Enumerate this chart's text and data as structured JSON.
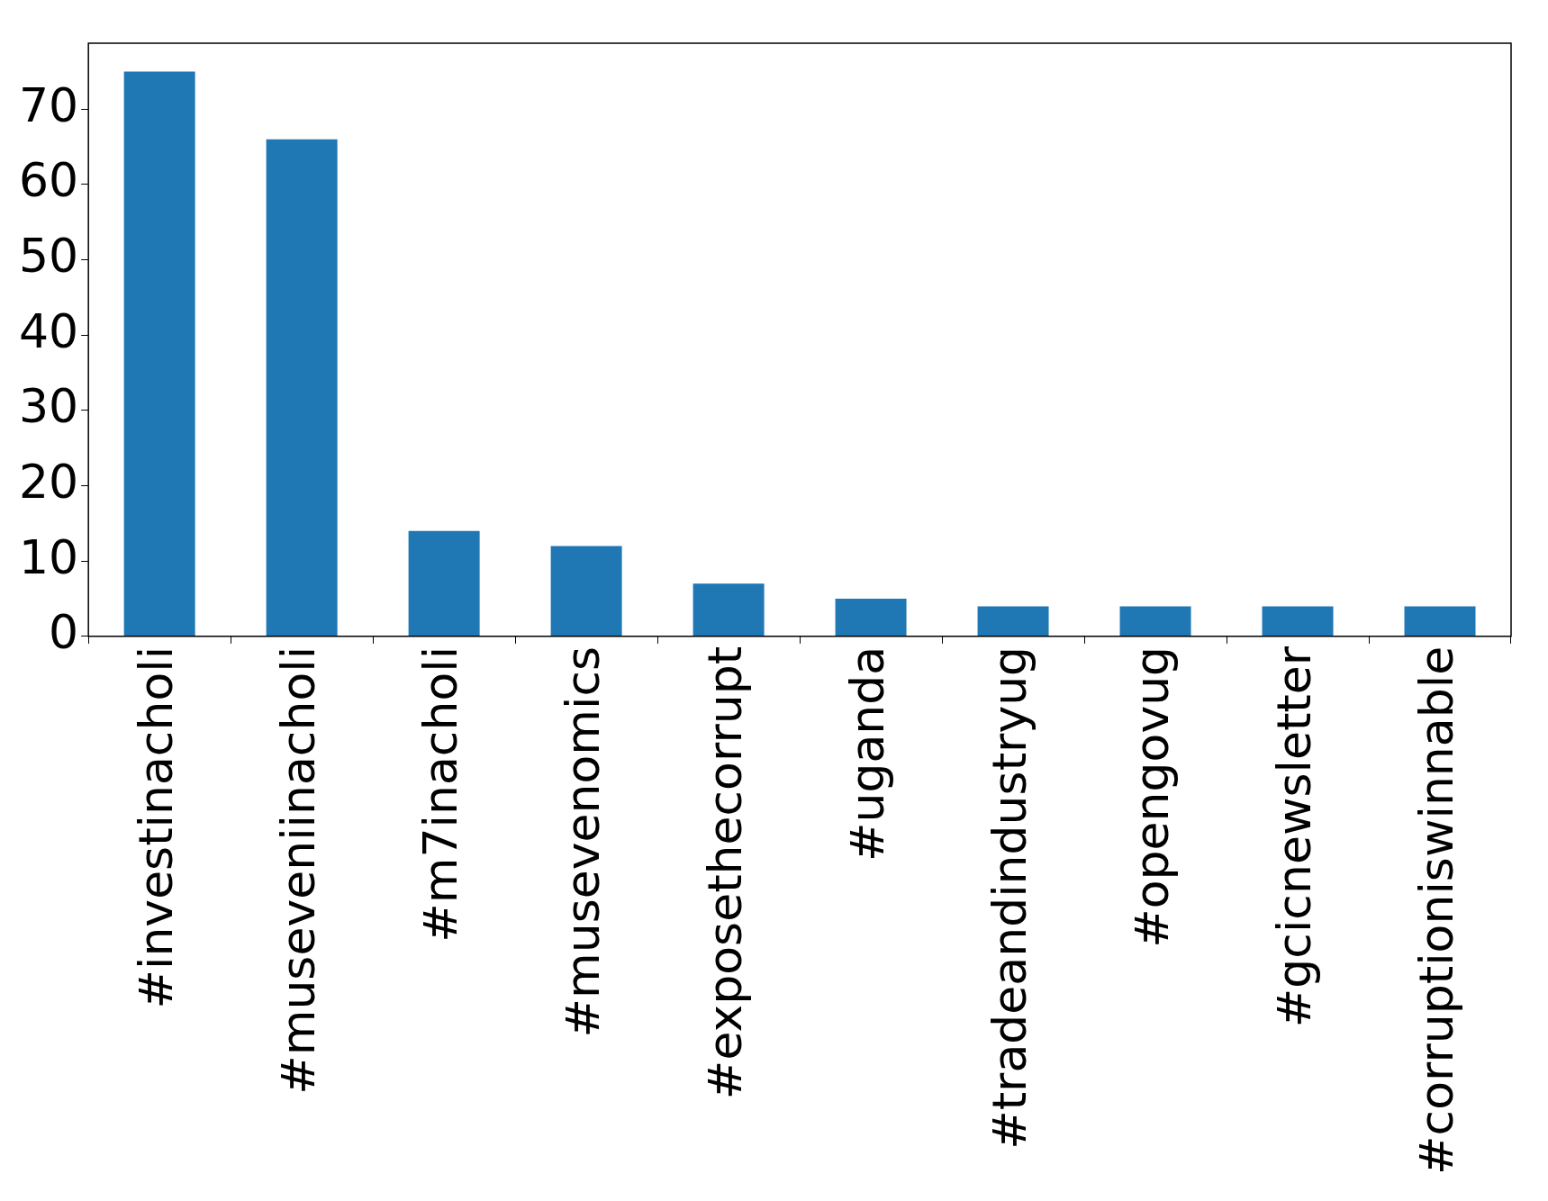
{
  "chart_data": {
    "type": "bar",
    "categories": [
      "#investinacholi",
      "#museveniinacholi",
      "#m7inacholi",
      "#musevenomics",
      "#exposethecorrupt",
      "#uganda",
      "#tradeandindustryug",
      "#opengovug",
      "#gcicnewsletter",
      "#corruptioniswinnable"
    ],
    "values": [
      75,
      66,
      14,
      12,
      7,
      5,
      4,
      4,
      4,
      4
    ],
    "color": "#1f77b4",
    "ylim": [
      0,
      78.75
    ],
    "yticks": [
      0,
      10,
      20,
      30,
      40,
      50,
      60,
      70
    ],
    "grid": false,
    "legend": false
  }
}
